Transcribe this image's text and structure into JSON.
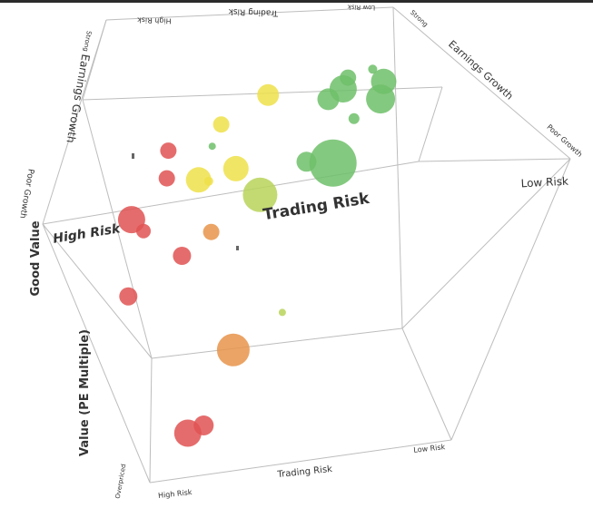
{
  "chart_data": {
    "type": "scatter",
    "projection": "3d-bubble",
    "title": "",
    "axes": {
      "x": {
        "name": "Trading Risk",
        "low_label": "High Risk",
        "high_label": "Low Risk",
        "range": [
          0,
          10
        ]
      },
      "y": {
        "name": "Value (PE Multiple)",
        "low_label": "Overpriced",
        "high_label": "Good Value",
        "range": [
          0,
          10
        ]
      },
      "z": {
        "name": "Earnings Growth",
        "low_label": "Poor Growth",
        "high_label": "Strong Growth",
        "range": [
          0,
          10
        ]
      }
    },
    "labels": {
      "floor_x_title": "Trading Risk",
      "floor_x_low": "High Risk",
      "floor_x_high": "Low Risk",
      "top_x_title": "Trading Risk",
      "top_x_low": "High Risk",
      "top_x_high": "Low Risk",
      "mid_x_title": "Trading Risk",
      "mid_x_low": "High Risk",
      "mid_x_high": "Low Risk",
      "left_y_title": "Value (PE Multiple)",
      "left_y_high": "Good Value",
      "left_y_low": "Overpriced",
      "left_z_title": "Earnings Growth",
      "left_z_low": "Poor Growth",
      "left_z_high": "Strong",
      "right_z_title": "Earnings Growth",
      "right_z_low": "Poor Growth",
      "right_z_high": "Strong"
    },
    "grid": false,
    "legend": "none",
    "colors": {
      "red": "#e05252",
      "orange": "#e8944a",
      "yellow": "#efe14a",
      "lime": "#b9d45a",
      "green": "#6fbf6a"
    },
    "points": [
      {
        "x": 1.0,
        "y": 0.8,
        "z": 2.0,
        "size": 30,
        "color": "red"
      },
      {
        "x": 1.6,
        "y": 1.0,
        "z": 2.0,
        "size": 22,
        "color": "red"
      },
      {
        "x": 3.3,
        "y": 3.4,
        "z": 2.5,
        "size": 36,
        "color": "orange"
      },
      {
        "x": 0.5,
        "y": 5.7,
        "z": 3.0,
        "size": 20,
        "color": "red"
      },
      {
        "x": 2.5,
        "y": 6.7,
        "z": 3.5,
        "size": 20,
        "color": "red"
      },
      {
        "x": 3.6,
        "y": 7.3,
        "z": 3.8,
        "size": 18,
        "color": "orange"
      },
      {
        "x": 5.2,
        "y": 4.4,
        "z": 2.8,
        "size": 8,
        "color": "lime"
      },
      {
        "x": 5.2,
        "y": 8.0,
        "z": 4.8,
        "size": 38,
        "color": "lime"
      },
      {
        "x": 1.1,
        "y": 8.0,
        "z": 4.2,
        "size": 30,
        "color": "red"
      },
      {
        "x": 1.2,
        "y": 7.4,
        "z": 4.5,
        "size": 16,
        "color": "red"
      },
      {
        "x": 2.2,
        "y": 8.8,
        "z": 5.5,
        "size": 18,
        "color": "red"
      },
      {
        "x": 3.3,
        "y": 8.7,
        "z": 5.2,
        "size": 28,
        "color": "yellow"
      },
      {
        "x": 3.6,
        "y": 8.6,
        "z": 5.2,
        "size": 10,
        "color": "yellow"
      },
      {
        "x": 4.7,
        "y": 9.0,
        "z": 5.0,
        "size": 28,
        "color": "yellow"
      },
      {
        "x": 7.4,
        "y": 8.3,
        "z": 6.0,
        "size": 52,
        "color": "green"
      },
      {
        "x": 6.5,
        "y": 8.4,
        "z": 6.2,
        "size": 22,
        "color": "green"
      },
      {
        "x": 7.8,
        "y": 9.0,
        "z": 8.0,
        "size": 12,
        "color": "green"
      },
      {
        "x": 2.4,
        "y": 9.6,
        "z": 6.0,
        "size": 18,
        "color": "red"
      },
      {
        "x": 3.9,
        "y": 9.8,
        "z": 7.2,
        "size": 18,
        "color": "yellow"
      },
      {
        "x": 4.0,
        "y": 9.7,
        "z": 5.6,
        "size": 8,
        "color": "green"
      },
      {
        "x": 5.0,
        "y": 9.9,
        "z": 9.0,
        "size": 24,
        "color": "yellow"
      },
      {
        "x": 7.0,
        "y": 9.6,
        "z": 8.6,
        "size": 24,
        "color": "green"
      },
      {
        "x": 7.6,
        "y": 9.9,
        "z": 8.6,
        "size": 30,
        "color": "green"
      },
      {
        "x": 8.6,
        "y": 9.3,
        "z": 8.7,
        "size": 32,
        "color": "green"
      },
      {
        "x": 8.8,
        "y": 9.8,
        "z": 9.0,
        "size": 28,
        "color": "green"
      },
      {
        "x": 7.4,
        "y": 9.8,
        "z": 9.8,
        "size": 18,
        "color": "green"
      },
      {
        "x": 8.2,
        "y": 9.9,
        "z": 10.0,
        "size": 10,
        "color": "green"
      }
    ]
  }
}
